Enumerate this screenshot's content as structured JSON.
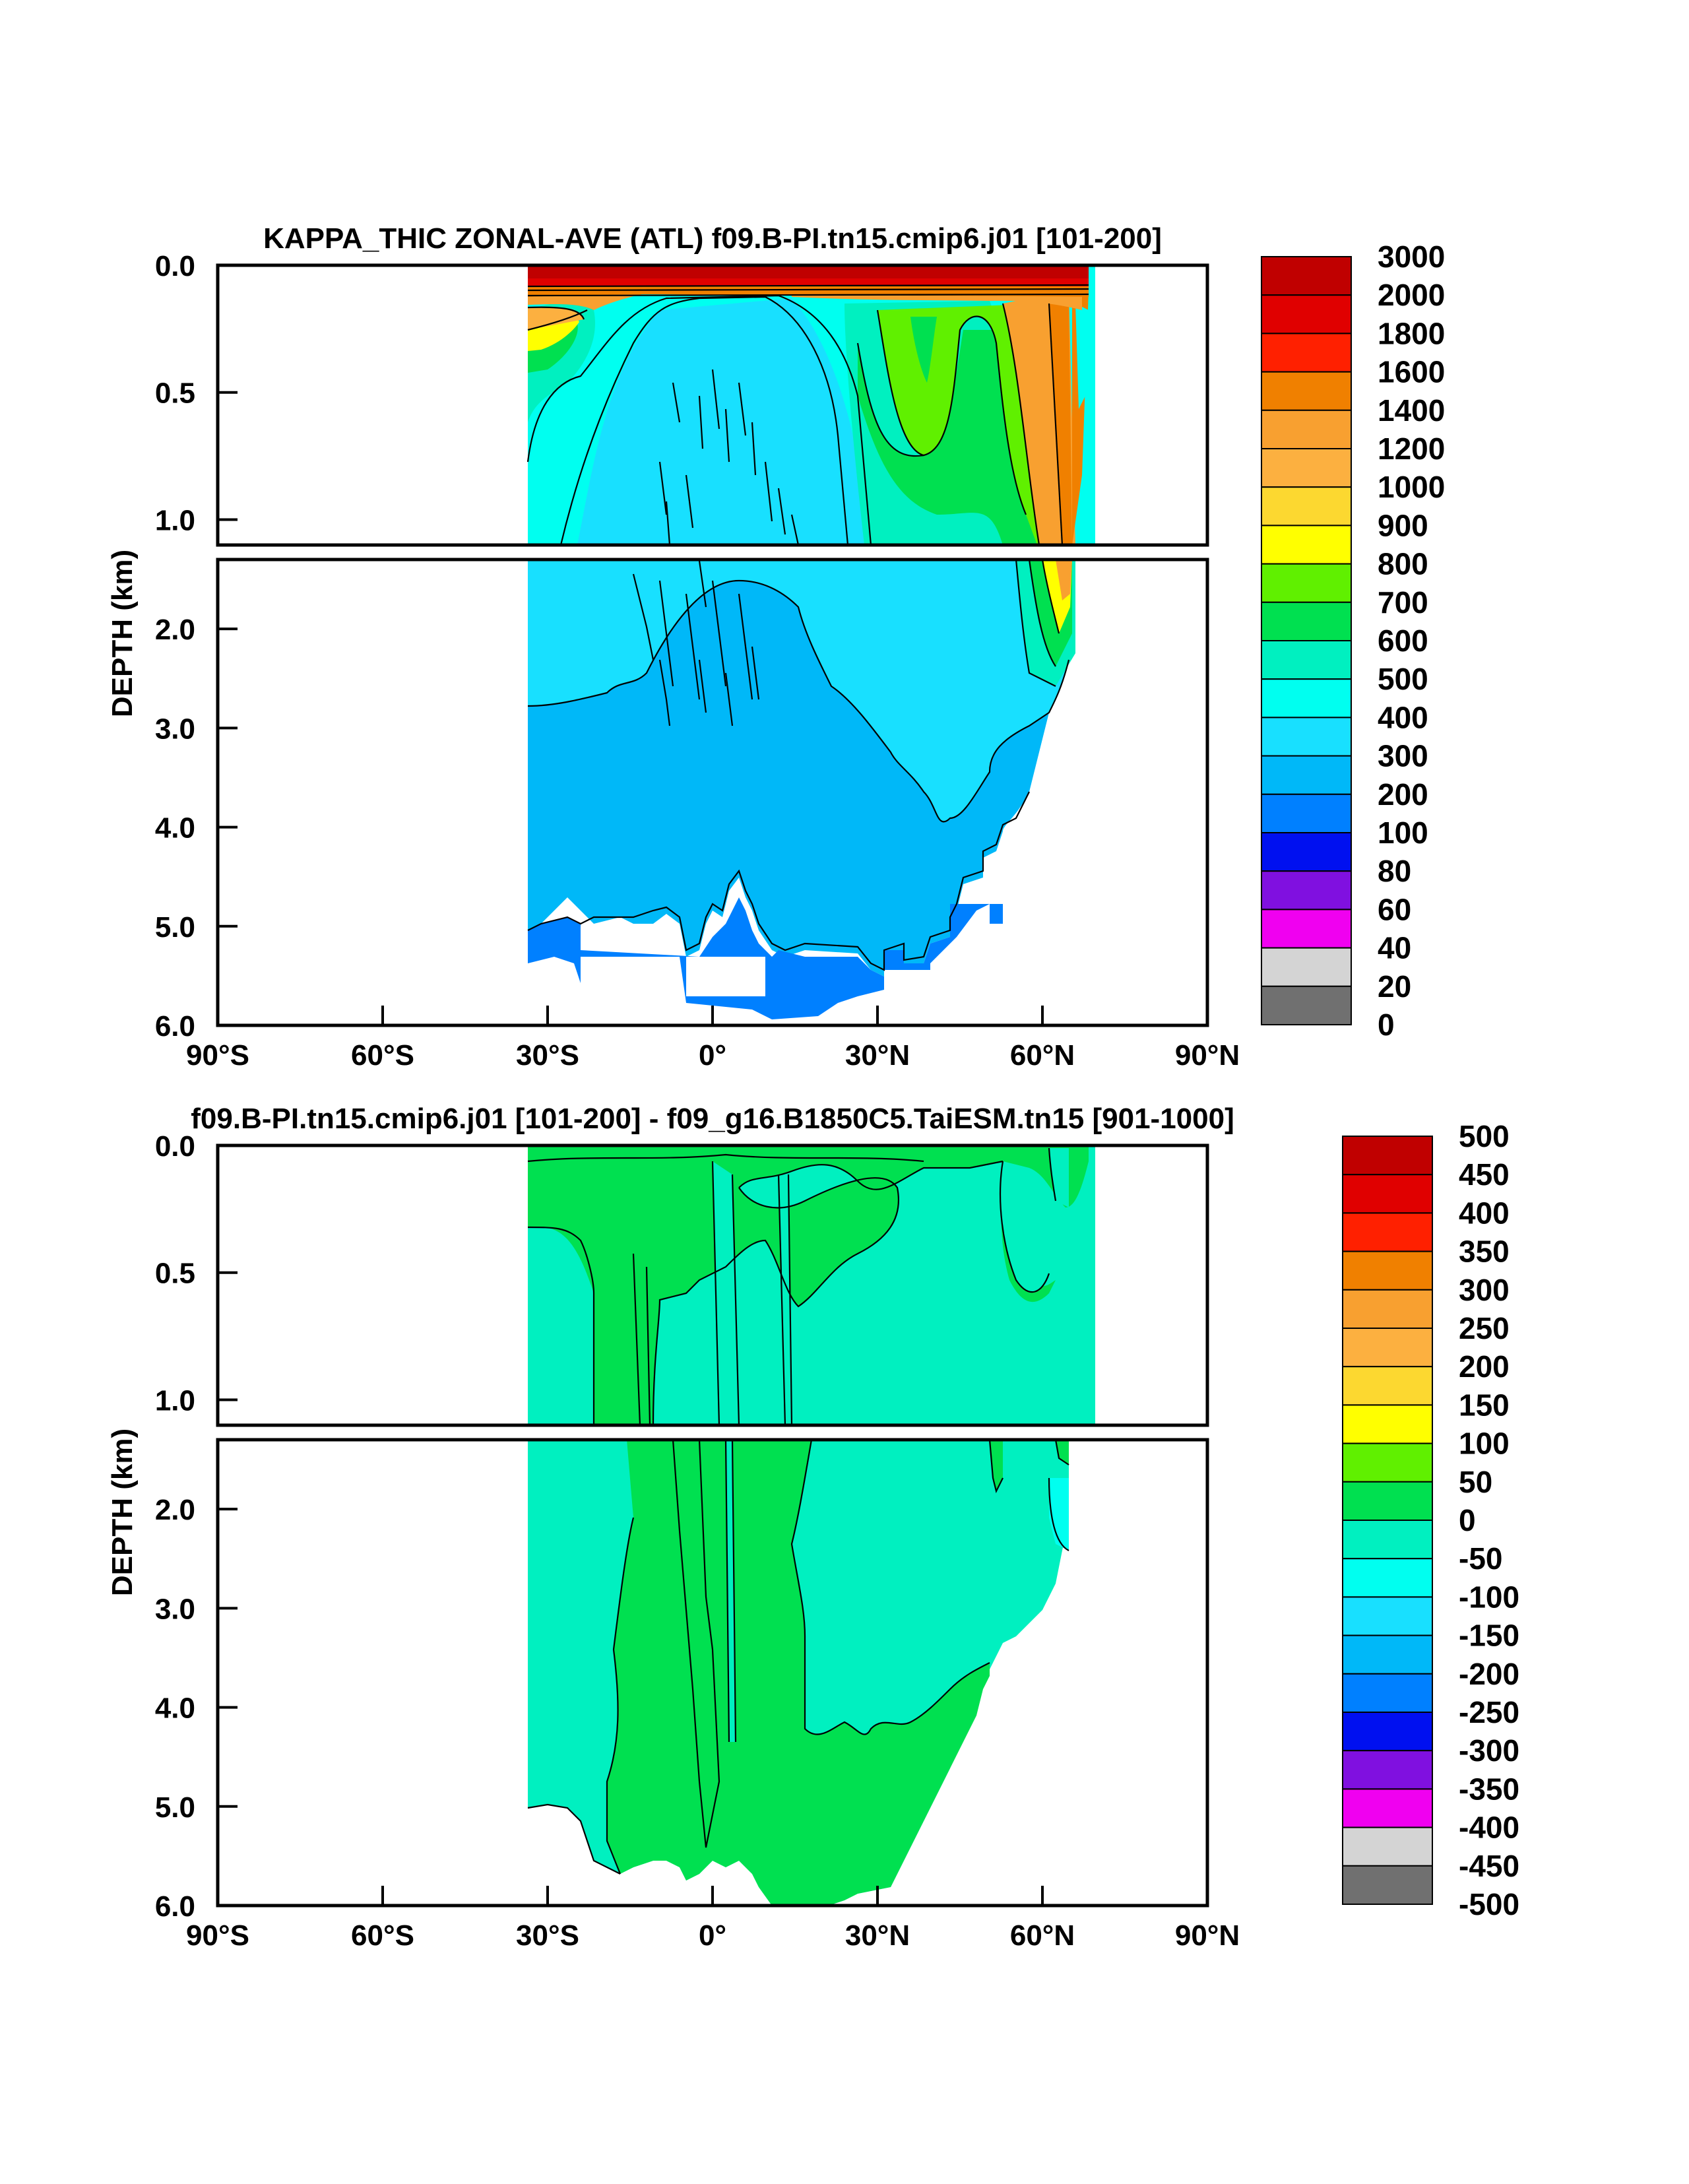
{
  "chart_data": [
    {
      "type": "heatmap",
      "title": "KAPPA_THIC ZONAL-AVE (ATL) f09.B-PI.tn15.cmip6.j01 [101-200]",
      "ylabel": "DEPTH (km)",
      "x_ticks": [
        "90°S",
        "60°S",
        "30°S",
        "0°",
        "30°N",
        "60°N",
        "90°N"
      ],
      "xlim": [
        -90,
        90
      ],
      "ylim": [
        6.0,
        0.0
      ],
      "y_ticks_upper": [
        "0.0",
        "0.5",
        "1.0"
      ],
      "y_ticks_lower": [
        "2.0",
        "3.0",
        "4.0",
        "5.0",
        "6.0"
      ],
      "data_lat_range": [
        -34,
        69
      ],
      "colorbar_labels": [
        "3000",
        "2000",
        "1800",
        "1600",
        "1400",
        "1200",
        "1000",
        "900",
        "800",
        "700",
        "600",
        "500",
        "400",
        "300",
        "200",
        "100",
        "80",
        "60",
        "40",
        "20",
        "0"
      ],
      "colors": [
        "#c00000",
        "#e00000",
        "#ff2000",
        "#f08000",
        "#f8a030",
        "#fcb040",
        "#fcd830",
        "#ffff00",
        "#60f000",
        "#00e050",
        "#00f0c0",
        "#00fff0",
        "#18e0ff",
        "#00b8f8",
        "#0080ff",
        "#0010f0",
        "#8010e0",
        "#f000f0",
        "#d4d4d4",
        "#707070"
      ]
    },
    {
      "type": "heatmap",
      "title": "f09.B-PI.tn15.cmip6.j01 [101-200] - f09_g16.B1850C5.TaiESM.tn15 [901-1000]",
      "ylabel": "DEPTH (km)",
      "x_ticks": [
        "90°S",
        "60°S",
        "30°S",
        "0°",
        "30°N",
        "60°N",
        "90°N"
      ],
      "xlim": [
        -90,
        90
      ],
      "ylim": [
        6.0,
        0.0
      ],
      "y_ticks_upper": [
        "0.0",
        "0.5",
        "1.0"
      ],
      "y_ticks_lower": [
        "2.0",
        "3.0",
        "4.0",
        "5.0",
        "6.0"
      ],
      "data_lat_range": [
        -34,
        69
      ],
      "colorbar_labels": [
        "500",
        "450",
        "400",
        "350",
        "300",
        "250",
        "200",
        "150",
        "100",
        "50",
        "0",
        "-50",
        "-100",
        "-150",
        "-200",
        "-250",
        "-300",
        "-350",
        "-400",
        "-450",
        "-500"
      ],
      "colors": [
        "#c00000",
        "#e00000",
        "#ff2000",
        "#f08000",
        "#f8a030",
        "#fcb040",
        "#fcd830",
        "#ffff00",
        "#60f000",
        "#00e050",
        "#00f0c0",
        "#00fff0",
        "#18e0ff",
        "#00b8f8",
        "#0080ff",
        "#0010f0",
        "#8010e0",
        "#f000f0",
        "#d4d4d4",
        "#707070"
      ]
    }
  ]
}
